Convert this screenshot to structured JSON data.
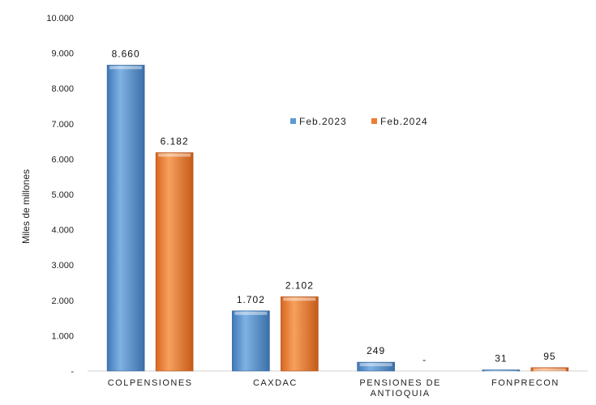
{
  "chart_data": {
    "type": "bar",
    "ylabel": "Miles de millones",
    "ylim": [
      0,
      10000
    ],
    "yticks": [
      {
        "value": 0,
        "label": "-"
      },
      {
        "value": 1000,
        "label": "1.000"
      },
      {
        "value": 2000,
        "label": "2.000"
      },
      {
        "value": 3000,
        "label": "3.000"
      },
      {
        "value": 4000,
        "label": "4.000"
      },
      {
        "value": 5000,
        "label": "5.000"
      },
      {
        "value": 6000,
        "label": "6.000"
      },
      {
        "value": 7000,
        "label": "7.000"
      },
      {
        "value": 8000,
        "label": "8.000"
      },
      {
        "value": 9000,
        "label": "9.000"
      },
      {
        "value": 10000,
        "label": "10.000"
      }
    ],
    "categories": [
      [
        "COLPENSIONES"
      ],
      [
        "CAXDAC"
      ],
      [
        "PENSIONES DE",
        "ANTIOQUIA"
      ],
      [
        "FONPRECON"
      ]
    ],
    "series": [
      {
        "name": "Feb.2023",
        "color": "#5B9BD5",
        "values": [
          8660,
          1702,
          249,
          31
        ],
        "labels": [
          "8.660",
          "1.702",
          "249",
          "31"
        ]
      },
      {
        "name": "Feb.2024",
        "color": "#ED7D31",
        "values": [
          6182,
          2102,
          0,
          95
        ],
        "labels": [
          "6.182",
          "2.102",
          "-",
          "95"
        ]
      }
    ],
    "legend_position": "top-center"
  }
}
